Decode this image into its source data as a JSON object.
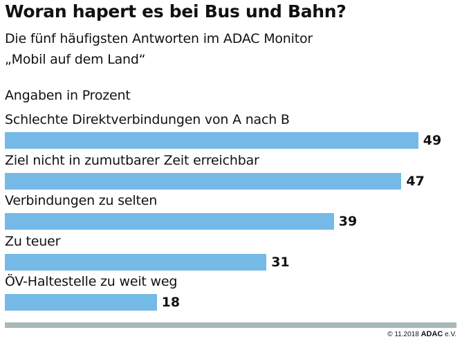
{
  "chart_data": {
    "type": "bar",
    "orientation": "horizontal",
    "title": "Woran hapert es bei Bus und Bahn?",
    "subtitle_lines": [
      "Die fünf häufigsten Antworten im ADAC Monitor",
      "„Mobil auf dem Land“"
    ],
    "unit_note": "Angaben in Prozent",
    "categories": [
      "Schlechte Direktverbindungen von A nach B",
      "Ziel nicht in zumutbarer Zeit erreichbar",
      "Verbindungen zu selten",
      "Zu teuer",
      "ÖV-Haltestelle zu weit weg"
    ],
    "values": [
      49,
      47,
      39,
      31,
      18
    ],
    "value_labels": [
      "49",
      "47",
      "39",
      "31",
      "18"
    ],
    "xlim": [
      0,
      52
    ],
    "grid": false
  },
  "footer": {
    "copyright": "© 11.2018",
    "brand": "ADAC",
    "suffix": "e.V."
  },
  "colors": {
    "bar": "#75b9e6",
    "rule": "#a9b8b8",
    "text": "#111111"
  }
}
